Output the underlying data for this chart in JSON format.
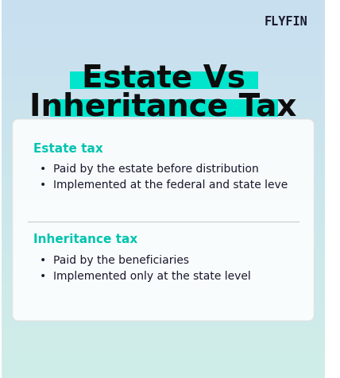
{
  "background_color_top": "#d6eaf8",
  "background_color_bottom": "#e8f8f5",
  "logo_text": "FLYFIN",
  "logo_color": "#1a1a2e",
  "logo_fontsize": 11,
  "title_line1": "Estate Vs",
  "title_line2": "Inheritance Tax",
  "title_color": "#0d0d0d",
  "title_fontsize": 28,
  "title_highlight_color": "#00e5cc",
  "card_bg": "#ffffff",
  "card_alpha": 0.85,
  "section1_header": "Estate tax",
  "section1_color": "#00c4b0",
  "section1_bullets": [
    "Paid by the estate before distribution",
    "Implemented at the federal and state leve"
  ],
  "section2_header": "Inheritance tax",
  "section2_color": "#00c4b0",
  "section2_bullets": [
    "Paid by the beneficiaries",
    "Implemented only at the state level"
  ],
  "bullet_color": "#1a1a2e",
  "header_fontsize": 11,
  "bullet_fontsize": 10,
  "divider_color": "#cccccc"
}
